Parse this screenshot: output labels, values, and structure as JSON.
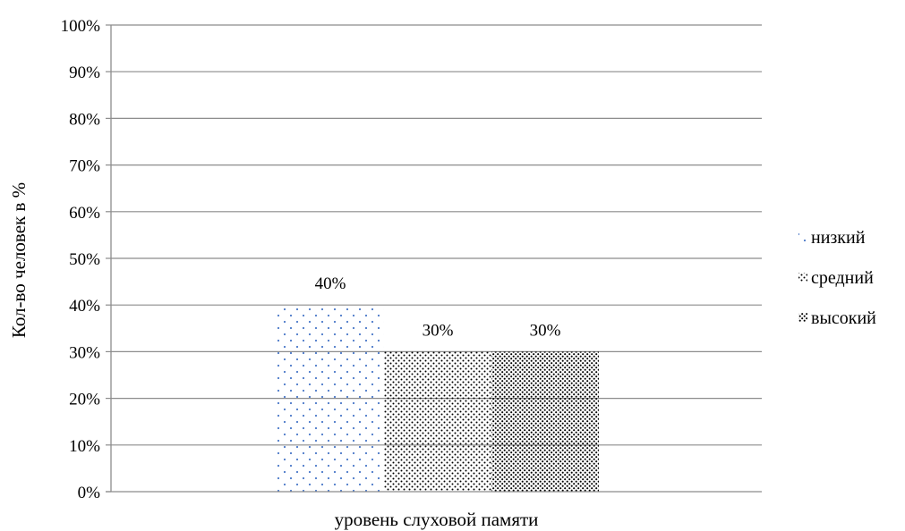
{
  "chart_data": {
    "type": "bar",
    "categories": [
      "уровень слуховой памяти"
    ],
    "series": [
      {
        "name": "низкий",
        "values": [
          40
        ],
        "data_label": "40%",
        "pattern": "sparse-dots",
        "color": "#4a78c8"
      },
      {
        "name": "средний",
        "values": [
          30
        ],
        "data_label": "30%",
        "pattern": "dense-dots",
        "color": "#000000"
      },
      {
        "name": "высокий",
        "values": [
          30
        ],
        "data_label": "30%",
        "pattern": "dense-dots-heavy",
        "color": "#000000"
      }
    ],
    "xlabel": "уровень слуховой памяти",
    "ylabel": "Кол-во человек в %",
    "ylim": [
      0,
      100
    ],
    "yticks": [
      "0%",
      "10%",
      "20%",
      "30%",
      "40%",
      "50%",
      "60%",
      "70%",
      "80%",
      "90%",
      "100%"
    ],
    "grid": true,
    "legend_position": "right",
    "gridline_color": "#8c8c8c"
  }
}
